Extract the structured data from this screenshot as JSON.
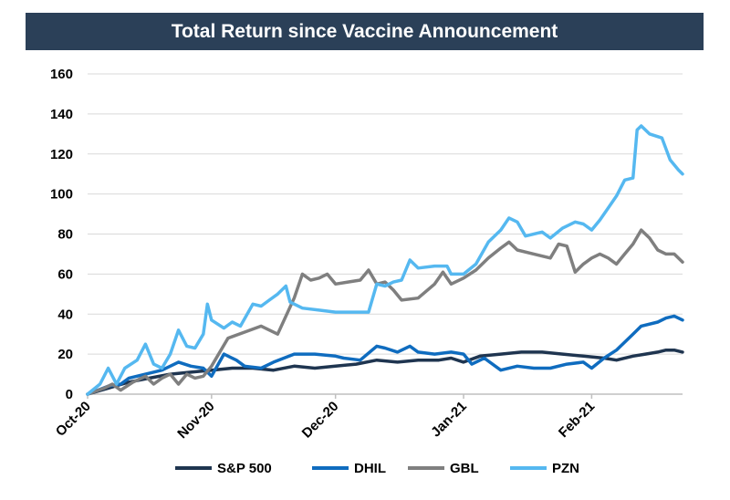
{
  "chart_data": {
    "type": "line",
    "title": "Total Return since Vaccine Announcement",
    "xlabel": "",
    "ylabel": "",
    "ylim": [
      0,
      160
    ],
    "yticks": [
      0,
      20,
      40,
      60,
      80,
      100,
      120,
      140,
      160
    ],
    "xticks": [
      {
        "label": "Oct-20",
        "x": 0
      },
      {
        "label": "Nov-20",
        "x": 30
      },
      {
        "label": "Dec-20",
        "x": 60
      },
      {
        "label": "Jan-21",
        "x": 91
      },
      {
        "label": "Feb-21",
        "x": 122
      }
    ],
    "xlim": [
      0,
      144
    ],
    "grid": "horizontal",
    "legend": "bottom",
    "series": [
      {
        "name": "S&P 500",
        "color": "#1f3550",
        "points": [
          [
            0,
            0
          ],
          [
            5,
            3
          ],
          [
            10,
            6
          ],
          [
            15,
            8
          ],
          [
            20,
            10
          ],
          [
            25,
            11
          ],
          [
            30,
            12
          ],
          [
            35,
            13
          ],
          [
            40,
            13
          ],
          [
            45,
            12
          ],
          [
            50,
            14
          ],
          [
            55,
            13
          ],
          [
            60,
            14
          ],
          [
            65,
            15
          ],
          [
            70,
            17
          ],
          [
            75,
            16
          ],
          [
            80,
            17
          ],
          [
            85,
            17
          ],
          [
            88,
            18
          ],
          [
            91,
            16
          ],
          [
            95,
            19
          ],
          [
            100,
            20
          ],
          [
            105,
            21
          ],
          [
            110,
            21
          ],
          [
            115,
            20
          ],
          [
            120,
            19
          ],
          [
            125,
            18
          ],
          [
            128,
            17
          ],
          [
            132,
            19
          ],
          [
            135,
            20
          ],
          [
            138,
            21
          ],
          [
            140,
            22
          ],
          [
            142,
            22
          ],
          [
            144,
            21
          ]
        ]
      },
      {
        "name": "DHIL",
        "color": "#0f6cbf",
        "points": [
          [
            0,
            0
          ],
          [
            5,
            4
          ],
          [
            8,
            5
          ],
          [
            10,
            8
          ],
          [
            14,
            10
          ],
          [
            18,
            12
          ],
          [
            22,
            16
          ],
          [
            25,
            14
          ],
          [
            28,
            13
          ],
          [
            30,
            9
          ],
          [
            33,
            20
          ],
          [
            36,
            17
          ],
          [
            38,
            14
          ],
          [
            42,
            13
          ],
          [
            45,
            16
          ],
          [
            50,
            20
          ],
          [
            55,
            20
          ],
          [
            60,
            19
          ],
          [
            62,
            18
          ],
          [
            66,
            17
          ],
          [
            70,
            24
          ],
          [
            72,
            23
          ],
          [
            75,
            21
          ],
          [
            78,
            24
          ],
          [
            80,
            21
          ],
          [
            84,
            20
          ],
          [
            88,
            21
          ],
          [
            91,
            20
          ],
          [
            93,
            15
          ],
          [
            96,
            18
          ],
          [
            100,
            12
          ],
          [
            104,
            14
          ],
          [
            108,
            13
          ],
          [
            112,
            13
          ],
          [
            116,
            15
          ],
          [
            120,
            16
          ],
          [
            122,
            13
          ],
          [
            125,
            18
          ],
          [
            128,
            22
          ],
          [
            132,
            30
          ],
          [
            134,
            34
          ],
          [
            138,
            36
          ],
          [
            140,
            38
          ],
          [
            142,
            39
          ],
          [
            144,
            37
          ]
        ]
      },
      {
        "name": "GBL",
        "color": "#7f7f7f",
        "points": [
          [
            0,
            0
          ],
          [
            4,
            3
          ],
          [
            6,
            5
          ],
          [
            8,
            2
          ],
          [
            11,
            6
          ],
          [
            14,
            9
          ],
          [
            16,
            5
          ],
          [
            18,
            8
          ],
          [
            20,
            10
          ],
          [
            22,
            5
          ],
          [
            24,
            10
          ],
          [
            26,
            8
          ],
          [
            28,
            9
          ],
          [
            30,
            14
          ],
          [
            34,
            28
          ],
          [
            38,
            31
          ],
          [
            42,
            34
          ],
          [
            46,
            30
          ],
          [
            50,
            48
          ],
          [
            52,
            60
          ],
          [
            54,
            57
          ],
          [
            56,
            58
          ],
          [
            58,
            60
          ],
          [
            60,
            55
          ],
          [
            63,
            56
          ],
          [
            66,
            57
          ],
          [
            68,
            62
          ],
          [
            70,
            55
          ],
          [
            72,
            56
          ],
          [
            74,
            52
          ],
          [
            76,
            47
          ],
          [
            80,
            48
          ],
          [
            84,
            55
          ],
          [
            86,
            61
          ],
          [
            88,
            55
          ],
          [
            91,
            58
          ],
          [
            94,
            62
          ],
          [
            97,
            68
          ],
          [
            100,
            73
          ],
          [
            102,
            76
          ],
          [
            104,
            72
          ],
          [
            108,
            70
          ],
          [
            112,
            68
          ],
          [
            114,
            75
          ],
          [
            116,
            74
          ],
          [
            118,
            61
          ],
          [
            120,
            65
          ],
          [
            122,
            68
          ],
          [
            124,
            70
          ],
          [
            126,
            68
          ],
          [
            128,
            65
          ],
          [
            130,
            70
          ],
          [
            132,
            75
          ],
          [
            134,
            82
          ],
          [
            136,
            78
          ],
          [
            138,
            72
          ],
          [
            140,
            70
          ],
          [
            142,
            70
          ],
          [
            144,
            66
          ]
        ]
      },
      {
        "name": "PZN",
        "color": "#55b8f0",
        "points": [
          [
            0,
            0
          ],
          [
            3,
            5
          ],
          [
            5,
            13
          ],
          [
            7,
            5
          ],
          [
            9,
            13
          ],
          [
            12,
            17
          ],
          [
            14,
            25
          ],
          [
            16,
            15
          ],
          [
            18,
            13
          ],
          [
            20,
            20
          ],
          [
            22,
            32
          ],
          [
            24,
            24
          ],
          [
            26,
            23
          ],
          [
            28,
            30
          ],
          [
            29,
            45
          ],
          [
            30,
            37
          ],
          [
            33,
            33
          ],
          [
            35,
            36
          ],
          [
            37,
            34
          ],
          [
            40,
            45
          ],
          [
            42,
            44
          ],
          [
            44,
            47
          ],
          [
            46,
            50
          ],
          [
            48,
            54
          ],
          [
            49,
            46
          ],
          [
            52,
            43
          ],
          [
            56,
            42
          ],
          [
            60,
            41
          ],
          [
            64,
            41
          ],
          [
            68,
            41
          ],
          [
            70,
            55
          ],
          [
            72,
            54
          ],
          [
            74,
            56
          ],
          [
            76,
            57
          ],
          [
            78,
            67
          ],
          [
            80,
            63
          ],
          [
            84,
            64
          ],
          [
            87,
            64
          ],
          [
            88,
            60
          ],
          [
            91,
            60
          ],
          [
            94,
            65
          ],
          [
            97,
            76
          ],
          [
            100,
            82
          ],
          [
            102,
            88
          ],
          [
            104,
            86
          ],
          [
            106,
            79
          ],
          [
            110,
            81
          ],
          [
            112,
            78
          ],
          [
            115,
            83
          ],
          [
            118,
            86
          ],
          [
            120,
            85
          ],
          [
            122,
            82
          ],
          [
            124,
            87
          ],
          [
            126,
            93
          ],
          [
            128,
            99
          ],
          [
            130,
            107
          ],
          [
            132,
            108
          ],
          [
            133,
            132
          ],
          [
            134,
            134
          ],
          [
            136,
            130
          ],
          [
            139,
            128
          ],
          [
            141,
            117
          ],
          [
            143,
            112
          ],
          [
            144,
            110
          ]
        ]
      }
    ]
  }
}
